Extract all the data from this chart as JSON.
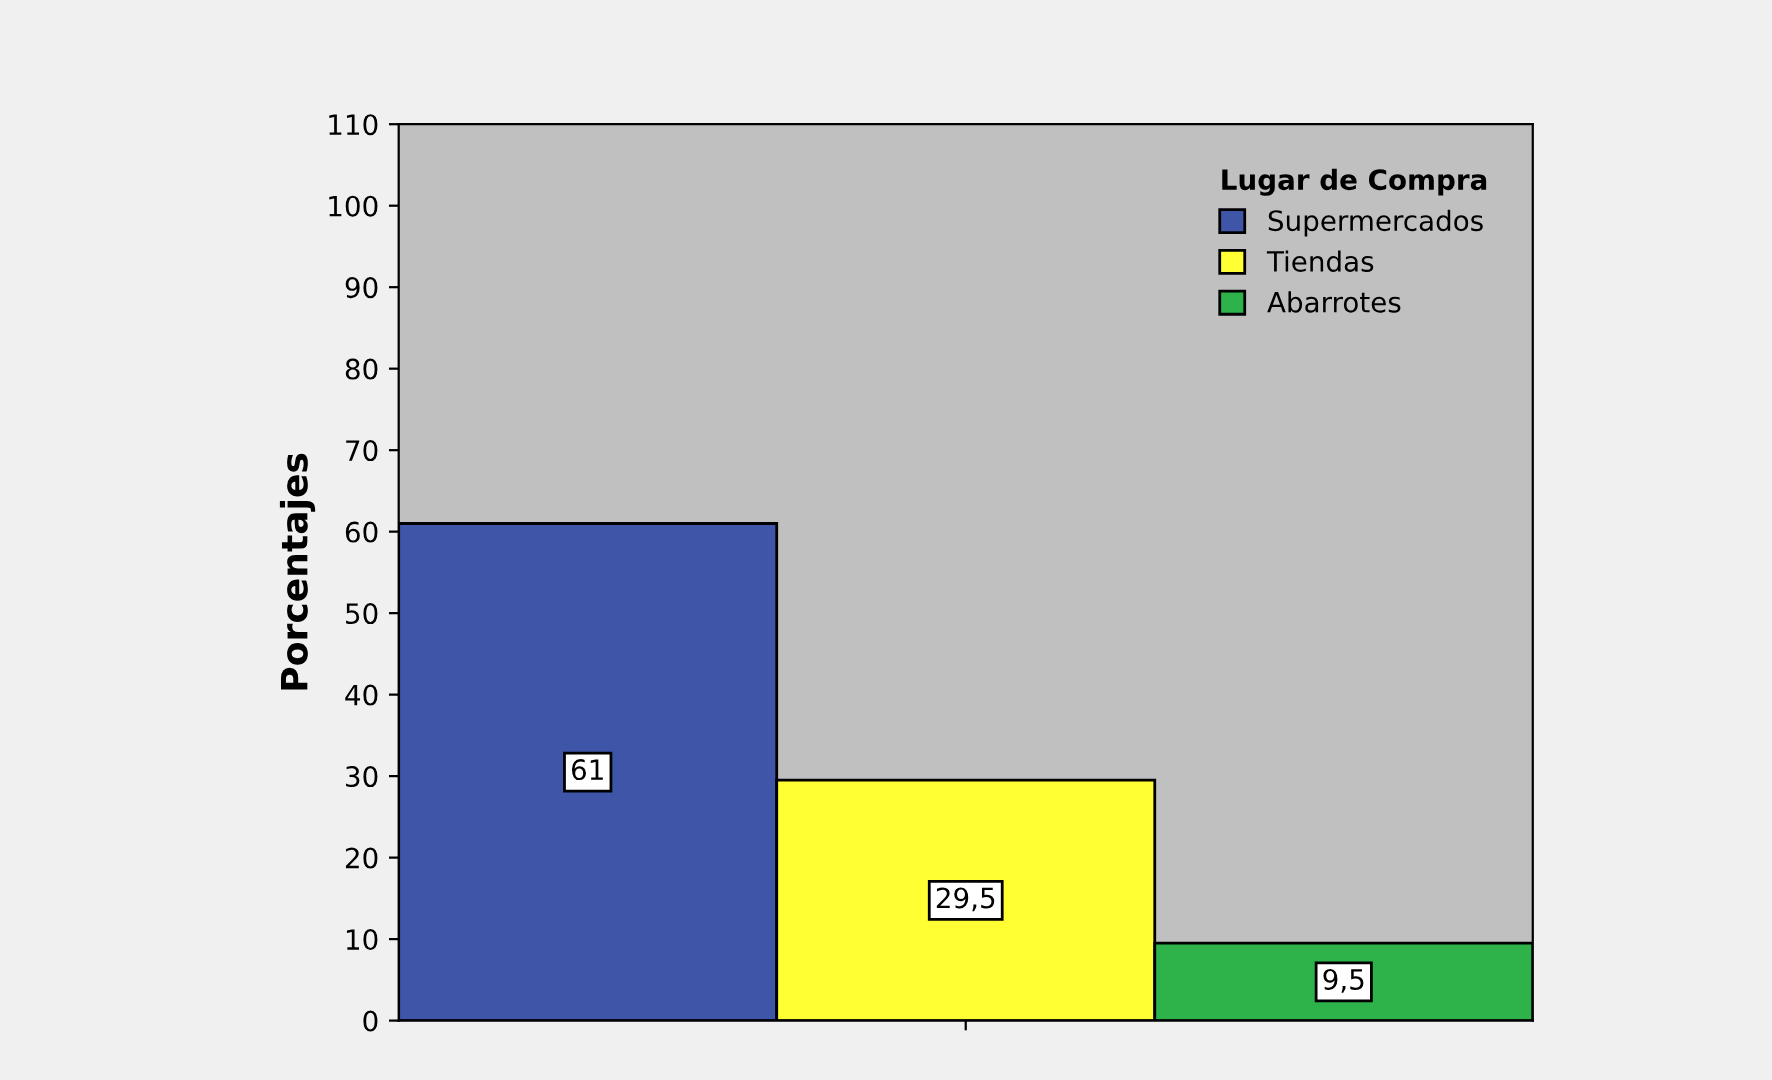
{
  "chart_data": {
    "type": "bar",
    "categories": [
      null
    ],
    "ylabel": "Porcentajes",
    "legend_title": "Lugar de Compra",
    "legend": "top right",
    "grid": false,
    "ylim": [
      0,
      110
    ],
    "yticks": [
      0,
      10,
      20,
      30,
      40,
      50,
      60,
      70,
      80,
      90,
      100,
      110
    ],
    "series": [
      {
        "name": "Supermercados",
        "color": "#3f56a8",
        "values": [
          61
        ],
        "value_labels": [
          "61"
        ]
      },
      {
        "name": "Tiendas",
        "color": "#ffff33",
        "values": [
          29.5
        ],
        "value_labels": [
          "29,5"
        ]
      },
      {
        "name": "Abarrotes",
        "color": "#2db34a",
        "values": [
          9.5
        ],
        "value_labels": [
          "9,5"
        ]
      }
    ]
  }
}
